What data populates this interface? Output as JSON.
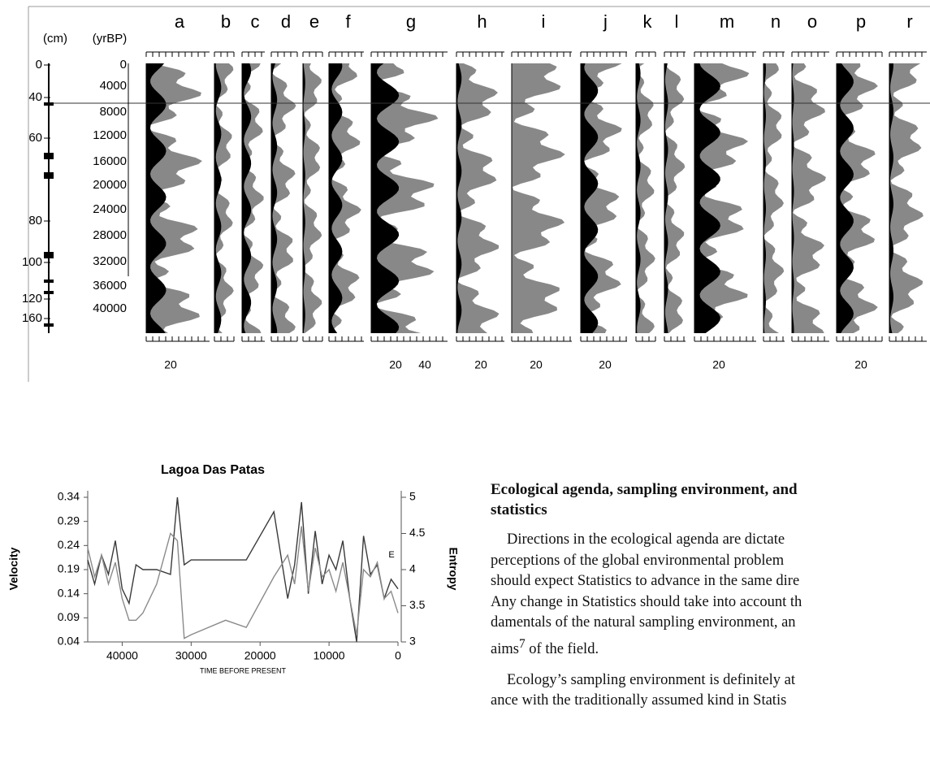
{
  "figure": {
    "depth_header": "(cm)",
    "age_header": "(yrBP)",
    "columns": [
      "a",
      "b",
      "c",
      "d",
      "e",
      "f",
      "g",
      "h",
      "i",
      "j",
      "k",
      "l",
      "m",
      "n",
      "o",
      "p",
      "r"
    ],
    "depth_labels": [
      0,
      40,
      60,
      80,
      100,
      120,
      160
    ],
    "age_labels": [
      0,
      4000,
      8000,
      12000,
      16000,
      20000,
      24000,
      28000,
      32000,
      36000,
      40000
    ],
    "bottom_labels": [
      [
        20
      ],
      [],
      [],
      [],
      [],
      [],
      [
        20,
        40
      ],
      [
        20
      ],
      [
        20
      ],
      [
        20
      ],
      [],
      [],
      [
        20
      ],
      [],
      [],
      [
        20
      ],
      []
    ]
  },
  "chart_data": {
    "type": "line",
    "title": "Lagoa Das Patas",
    "xlabel": "TIME BEFORE PRESENT",
    "ylabel": "Velocity",
    "y2label": "Entropy",
    "annotation": "E",
    "x": [
      45000,
      44000,
      43000,
      42000,
      41000,
      40000,
      39000,
      38000,
      37000,
      35000,
      33000,
      32000,
      31000,
      30000,
      25000,
      22000,
      18000,
      16000,
      15000,
      14000,
      13000,
      12000,
      11000,
      10000,
      9000,
      8000,
      7000,
      6000,
      5000,
      4000,
      3000,
      2000,
      1000,
      0
    ],
    "series": [
      {
        "color": "#3a3a3a",
        "values": [
          0.21,
          0.16,
          0.22,
          0.18,
          0.25,
          0.15,
          0.12,
          0.2,
          0.19,
          0.19,
          0.18,
          0.34,
          0.2,
          0.21,
          0.21,
          0.21,
          0.31,
          0.13,
          0.2,
          0.33,
          0.14,
          0.27,
          0.16,
          0.22,
          0.19,
          0.25,
          0.13,
          0.04,
          0.26,
          0.18,
          0.2,
          0.13,
          0.17,
          0.15
        ]
      },
      {
        "color": "#8a8a8a",
        "axis": "y2",
        "values": [
          4.3,
          3.9,
          4.2,
          3.8,
          4.1,
          3.6,
          3.3,
          3.3,
          3.4,
          3.8,
          4.5,
          4.4,
          3.05,
          3.1,
          3.3,
          3.2,
          3.9,
          4.2,
          3.8,
          4.6,
          3.7,
          4.3,
          3.9,
          4.0,
          3.7,
          4.1,
          3.6,
          3.1,
          4.0,
          3.9,
          4.1,
          3.6,
          3.7,
          3.4
        ]
      }
    ],
    "xlim": [
      45000,
      0
    ],
    "xticks": [
      40000,
      30000,
      20000,
      10000,
      0
    ],
    "ylim": [
      0.04,
      0.34
    ],
    "yticks": [
      0.04,
      0.09,
      0.14,
      0.19,
      0.24,
      0.29,
      0.34
    ],
    "y2lim": [
      3,
      5
    ],
    "y2ticks": [
      3,
      3.5,
      4,
      4.5,
      5
    ]
  },
  "text": {
    "heading": [
      "Ecological agenda, sampling environment, and",
      "statistics"
    ],
    "paragraphs": [
      [
        "Directions in the ecological agenda are dictate",
        "perceptions of the global environmental problem",
        "should expect Statistics to advance in the same dire",
        "Any change in Statistics should take into account th",
        "damentals of the natural sampling environment, an",
        {
          "text": "aims",
          "sup": "7",
          "tail": " of the field."
        }
      ],
      [
        "Ecology’s sampling environment is definitely at",
        "ance with the traditionally assumed kind in Statis"
      ]
    ]
  }
}
